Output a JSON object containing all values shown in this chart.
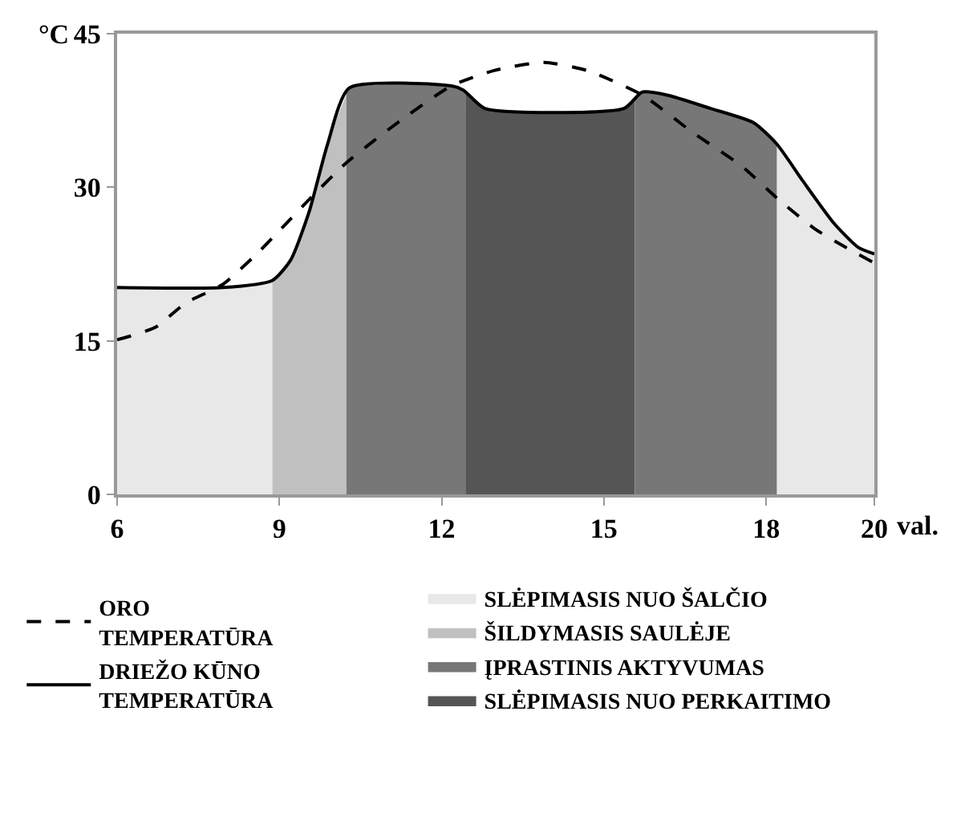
{
  "chart_data": {
    "type": "line",
    "xlabel": "val.",
    "ylabel": "°C",
    "xlim": [
      6,
      20
    ],
    "xticks": [
      6,
      9,
      12,
      15,
      18,
      20
    ],
    "ylim": [
      0,
      45
    ],
    "yticks": [
      0,
      15,
      30,
      45
    ],
    "legend": "bottom",
    "marker": "none",
    "series": [
      {
        "type": "area",
        "name": "SLĖPIMASIS NUO ŠALČIO",
        "color": "#e8e8e8",
        "x": [
          6,
          7.95,
          8.87
        ],
        "values": [
          20.2,
          20.2,
          20.9
        ]
      },
      {
        "type": "area",
        "name": "ŠILDYMASIS SAULĖJE",
        "color": "#c0c0c0",
        "x": [
          8.87,
          9.21,
          9.55,
          9.89,
          10.24
        ],
        "values": [
          20.9,
          22.9,
          27.6,
          34.2,
          39.0
        ]
      },
      {
        "type": "area",
        "name": "ĮPRASTINIS AKTYVUMAS",
        "color": "#777777",
        "x": [
          10.24,
          10.29,
          12.18,
          12.4,
          12.44
        ],
        "values": [
          39.0,
          39.7,
          39.9,
          39.5,
          39.3
        ]
      },
      {
        "type": "area",
        "name": "SLĖPIMASIS NUO PERKAITIMO",
        "color": "#555555",
        "x": [
          12.44,
          12.8,
          15.37,
          15.57
        ],
        "values": [
          39.3,
          37.7,
          37.7,
          38.6
        ]
      },
      {
        "type": "area",
        "color": "#777777",
        "x": [
          15.57,
          15.71,
          16.17,
          16.97,
          17.77,
          18.2
        ],
        "values": [
          38.6,
          39.3,
          39.0,
          37.7,
          36.3,
          34.2
        ]
      },
      {
        "type": "area",
        "color": "#e8e8e8",
        "x": [
          18.2,
          18.68,
          19.25,
          19.71,
          20
        ],
        "values": [
          34.2,
          30.6,
          26.5,
          24.1,
          23.5
        ]
      },
      {
        "name": "ORO TEMPERATŪRA",
        "color": "#000000",
        "line_style": "dashed",
        "x": [
          6,
          6.7,
          7.27,
          7.95,
          8.64,
          9.55,
          10.24,
          11.26,
          12.18,
          12.97,
          13.89,
          14.69,
          15.71,
          16.63,
          17.54,
          18.23,
          18.91,
          19.48,
          20
        ],
        "values": [
          15.1,
          16.3,
          18.7,
          20.5,
          23.8,
          28.8,
          32.4,
          36.6,
          39.9,
          41.4,
          42.2,
          41.4,
          39.0,
          35.4,
          32.1,
          28.8,
          25.9,
          24.1,
          22.6
        ]
      },
      {
        "name": "DRIEŽO KŪNO TEMPERATŪRA",
        "color": "#000000",
        "line_style": "solid",
        "x": [
          6,
          7.95,
          8.87,
          9.21,
          9.55,
          9.89,
          10.29,
          12.18,
          12.4,
          12.8,
          15.37,
          15.71,
          16.17,
          16.97,
          17.77,
          18.2,
          18.68,
          19.25,
          19.71,
          20
        ],
        "values": [
          20.2,
          20.2,
          20.9,
          22.9,
          27.6,
          34.2,
          39.7,
          39.9,
          39.5,
          37.7,
          37.7,
          39.3,
          39.0,
          37.7,
          36.3,
          34.2,
          30.6,
          26.5,
          24.1,
          23.5
        ]
      }
    ]
  }
}
